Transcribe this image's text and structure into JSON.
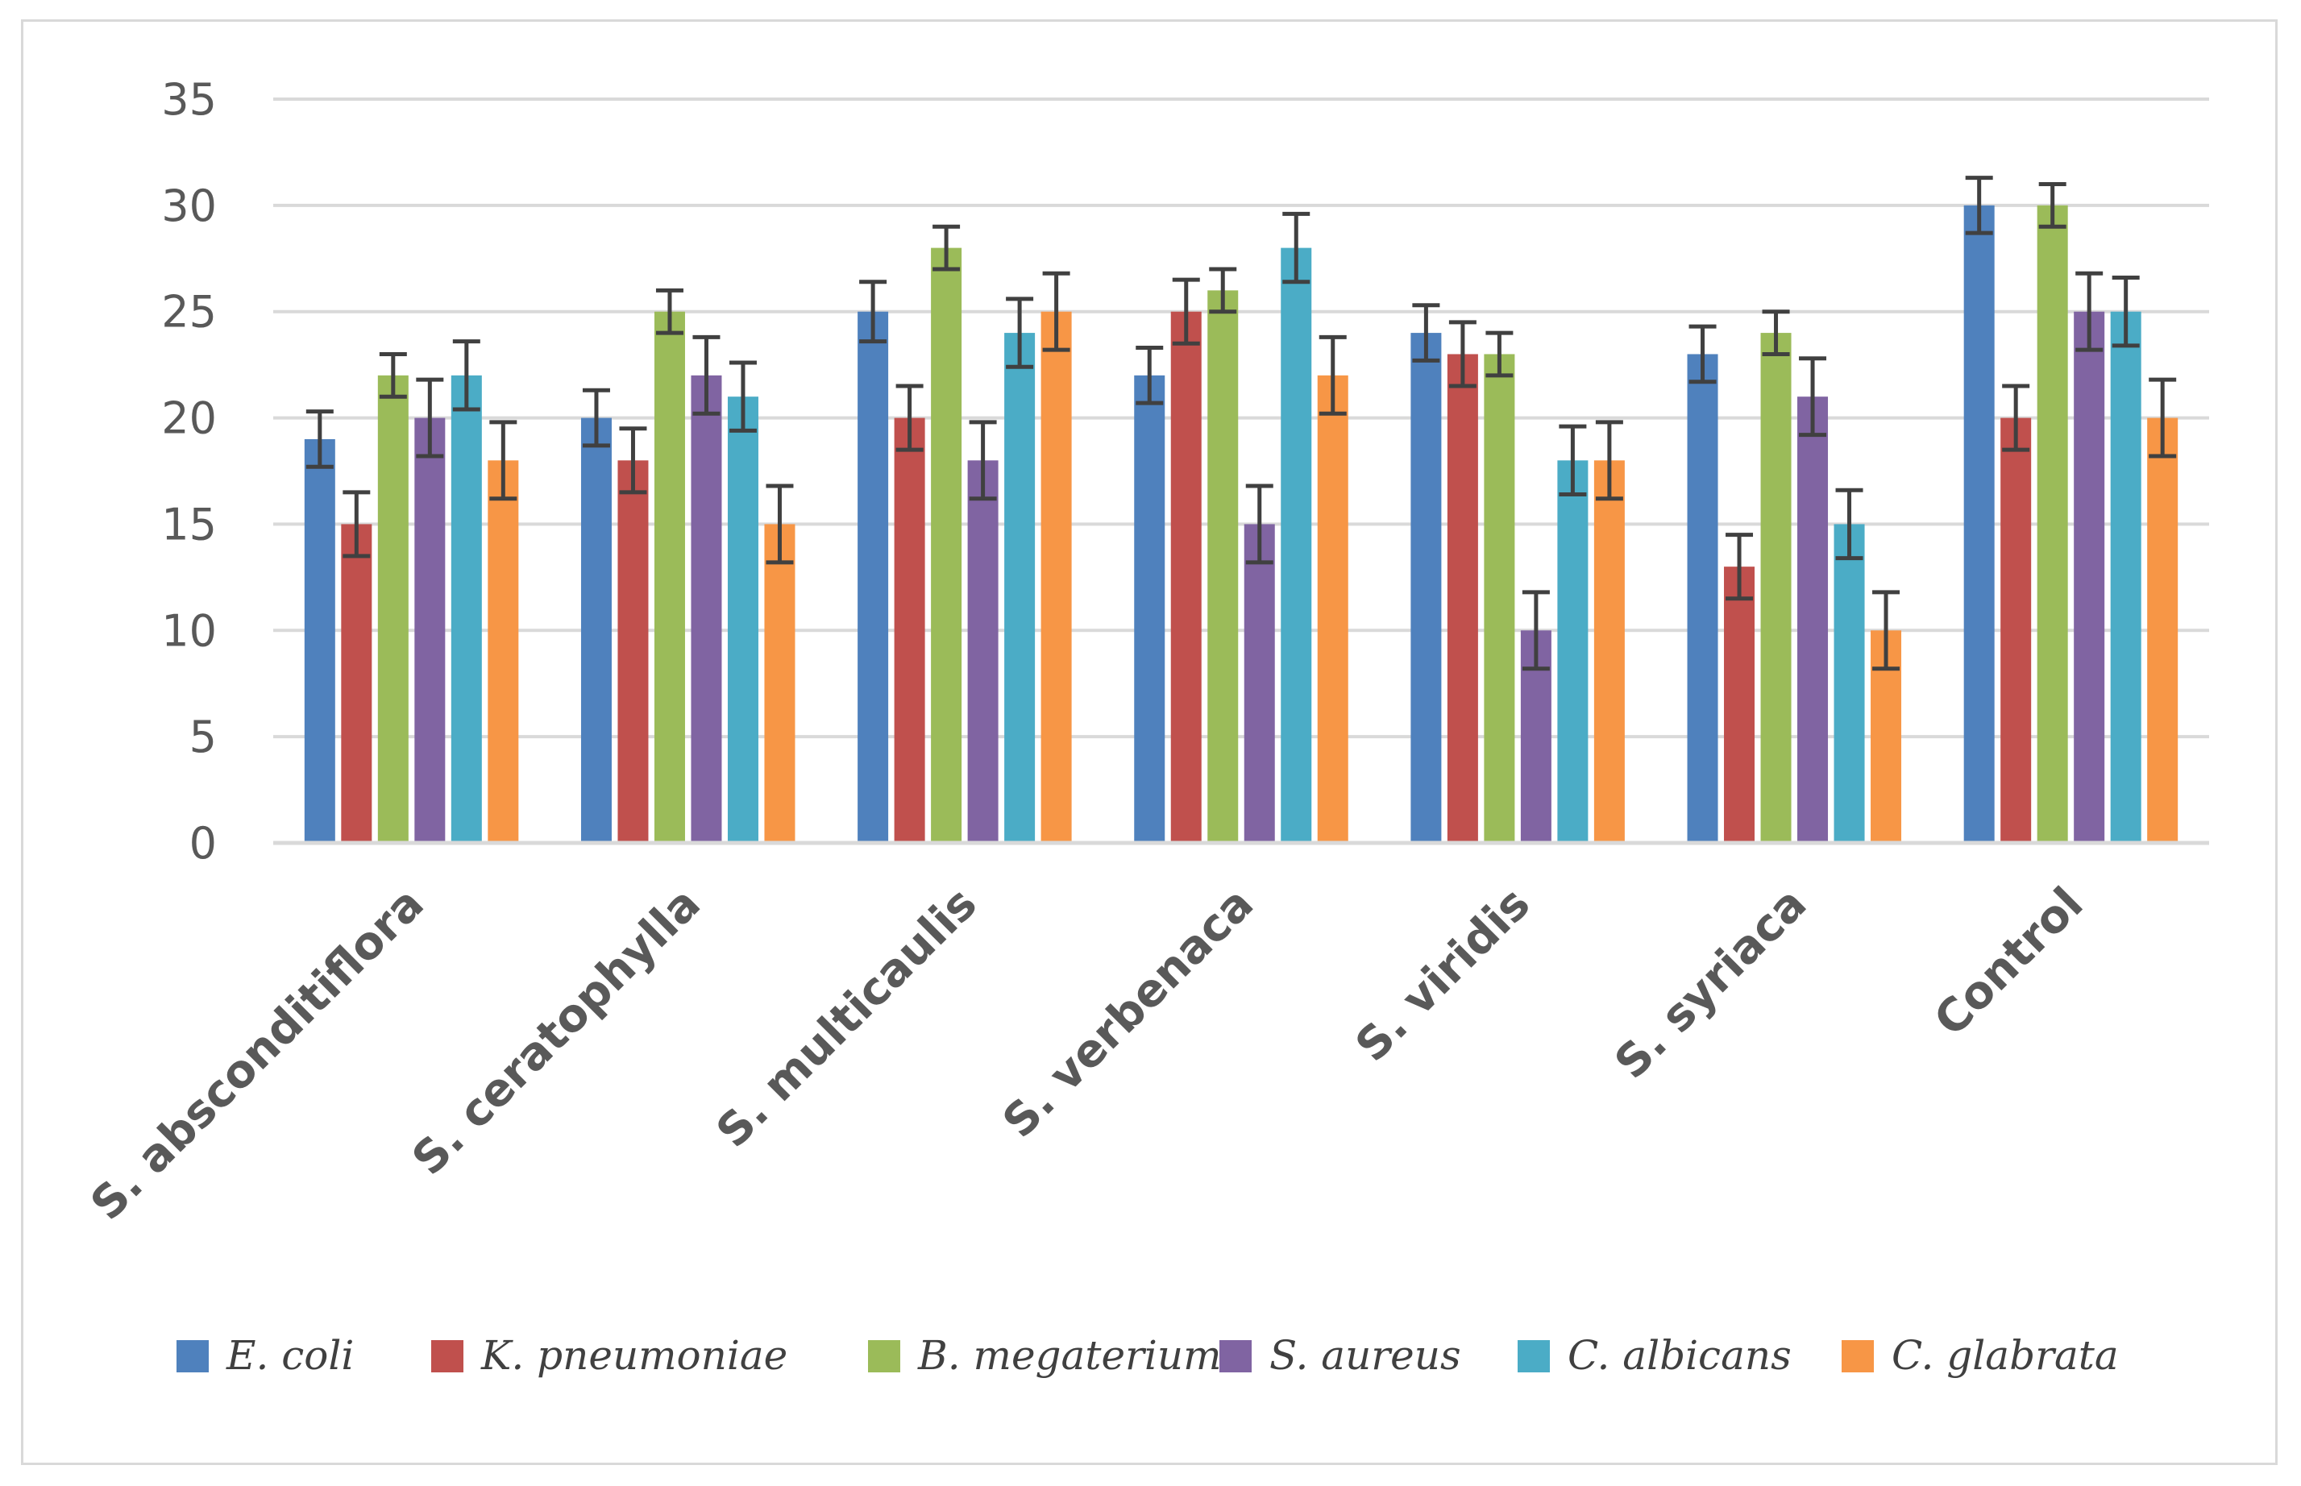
{
  "chart_data": {
    "type": "bar",
    "title": "",
    "xlabel": "",
    "ylabel": "",
    "ylim": [
      0,
      35
    ],
    "yticks": [
      0,
      5,
      10,
      15,
      20,
      25,
      30,
      35
    ],
    "grid": true,
    "legend_position": "bottom",
    "categories": [
      "S. absconditiflora",
      "S. ceratophylla",
      "S. multicaulis",
      "S. verbenaca",
      "S. viridis",
      "S. syriaca",
      "Control"
    ],
    "series": [
      {
        "name": "E. coli",
        "color": "#4f81bd",
        "values": [
          19,
          20,
          25,
          22,
          24,
          23,
          30
        ],
        "errors": [
          1.3,
          1.3,
          1.4,
          1.3,
          1.3,
          1.3,
          1.3
        ]
      },
      {
        "name": "K. pneumoniae",
        "color": "#c0504d",
        "values": [
          15,
          18,
          20,
          25,
          23,
          13,
          20
        ],
        "errors": [
          1.5,
          1.5,
          1.5,
          1.5,
          1.5,
          1.5,
          1.5
        ]
      },
      {
        "name": "B. megaterium",
        "color": "#9bbb59",
        "values": [
          22,
          25,
          28,
          26,
          23,
          24,
          30
        ],
        "errors": [
          1.0,
          1.0,
          1.0,
          1.0,
          1.0,
          1.0,
          1.0
        ]
      },
      {
        "name": "S. aureus",
        "color": "#8064a2",
        "values": [
          20,
          22,
          18,
          15,
          10,
          21,
          25
        ],
        "errors": [
          1.8,
          1.8,
          1.8,
          1.8,
          1.8,
          1.8,
          1.8
        ]
      },
      {
        "name": "C. albicans",
        "color": "#4bacc6",
        "values": [
          22,
          21,
          24,
          28,
          18,
          15,
          25
        ],
        "errors": [
          1.6,
          1.6,
          1.6,
          1.6,
          1.6,
          1.6,
          1.6
        ]
      },
      {
        "name": "C. glabrata",
        "color": "#f79646",
        "values": [
          18,
          15,
          25,
          22,
          18,
          10,
          20
        ],
        "errors": [
          1.8,
          1.8,
          1.8,
          1.8,
          1.8,
          1.8,
          1.8
        ]
      }
    ]
  },
  "colors": {
    "gridline": "#d9d9d9",
    "error_bar": "#404040",
    "text": "#595959"
  }
}
